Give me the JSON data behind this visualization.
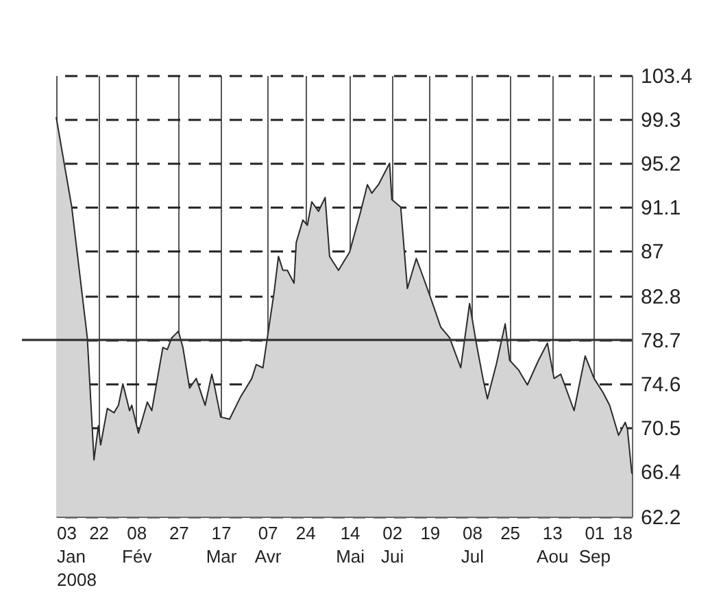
{
  "chart_data": {
    "type": "area",
    "x": [
      "2008-01-03",
      "2008-01-10",
      "2008-01-17",
      "2008-01-20",
      "2008-01-22",
      "2008-01-23",
      "2008-01-26",
      "2008-01-29",
      "2008-01-31",
      "2008-02-02",
      "2008-02-05",
      "2008-02-06",
      "2008-02-09",
      "2008-02-13",
      "2008-02-15",
      "2008-02-20",
      "2008-02-22",
      "2008-02-24",
      "2008-02-27",
      "2008-02-29",
      "2008-03-03",
      "2008-03-06",
      "2008-03-10",
      "2008-03-13",
      "2008-03-14",
      "2008-03-17",
      "2008-03-21",
      "2008-03-26",
      "2008-03-31",
      "2008-04-02",
      "2008-04-05",
      "2008-04-07",
      "2008-04-10",
      "2008-04-12",
      "2008-04-14",
      "2008-04-16",
      "2008-04-19",
      "2008-04-20",
      "2008-04-23",
      "2008-04-25",
      "2008-04-27",
      "2008-04-30",
      "2008-05-03",
      "2008-05-05",
      "2008-05-09",
      "2008-05-14",
      "2008-05-19",
      "2008-05-22",
      "2008-05-24",
      "2008-05-27",
      "2008-06-01",
      "2008-06-02",
      "2008-06-06",
      "2008-06-09",
      "2008-06-13",
      "2008-06-15",
      "2008-06-19",
      "2008-06-24",
      "2008-06-28",
      "2008-07-03",
      "2008-07-07",
      "2008-07-10",
      "2008-07-13",
      "2008-07-15",
      "2008-07-19",
      "2008-07-23",
      "2008-07-25",
      "2008-07-29",
      "2008-08-02",
      "2008-08-07",
      "2008-08-11",
      "2008-08-14",
      "2008-08-17",
      "2008-08-23",
      "2008-08-28",
      "2008-09-01",
      "2008-09-05",
      "2008-09-08",
      "2008-09-12",
      "2008-09-15",
      "2008-09-16",
      "2008-09-18"
    ],
    "series": [
      {
        "color": "#d4d4d4",
        "values": [
          99.5,
          91.1,
          78.9,
          67.5,
          70.7,
          68.9,
          72.3,
          71.9,
          72.6,
          74.6,
          72.1,
          72.6,
          70.0,
          72.9,
          72.1,
          78.0,
          77.8,
          78.9,
          79.5,
          78.0,
          74.2,
          75.1,
          72.6,
          75.5,
          74.6,
          71.5,
          71.3,
          73.4,
          75.1,
          76.4,
          76.1,
          78.9,
          83.1,
          86.5,
          85.2,
          85.2,
          84.0,
          87.8,
          89.9,
          89.4,
          91.6,
          90.7,
          92.0,
          86.5,
          85.2,
          86.9,
          90.7,
          93.2,
          92.4,
          93.2,
          95.2,
          91.8,
          91.1,
          83.5,
          86.3,
          85.2,
          82.9,
          79.9,
          78.9,
          76.1,
          82.1,
          78.4,
          75.1,
          73.2,
          76.4,
          80.2,
          76.8,
          75.9,
          74.5,
          76.8,
          78.4,
          75.1,
          75.5,
          72.1,
          77.2,
          75.1,
          73.8,
          72.6,
          69.8,
          71.0,
          70.4,
          66.2
        ]
      }
    ],
    "xlim": [
      "2008-01-03",
      "2008-09-18"
    ],
    "xticks": [
      {
        "value": "2008-01-03",
        "label": "03\nJan\n2008"
      },
      {
        "value": "2008-01-22",
        "label": "22"
      },
      {
        "value": "2008-02-08",
        "label": "08\nFév"
      },
      {
        "value": "2008-02-27",
        "label": "27"
      },
      {
        "value": "2008-03-17",
        "label": "17\nMar"
      },
      {
        "value": "2008-04-07",
        "label": "07\nAvr"
      },
      {
        "value": "2008-04-24",
        "label": "24"
      },
      {
        "value": "2008-05-14",
        "label": "14\nMai"
      },
      {
        "value": "2008-06-02",
        "label": "02\nJui"
      },
      {
        "value": "2008-06-19",
        "label": "19"
      },
      {
        "value": "2008-07-08",
        "label": "08\nJul"
      },
      {
        "value": "2008-07-25",
        "label": "25"
      },
      {
        "value": "2008-08-13",
        "label": "13\nAou"
      },
      {
        "value": "2008-09-01",
        "label": "01\nSep"
      },
      {
        "value": "2008-09-18",
        "label": "18"
      }
    ],
    "ylim": [
      62.2,
      103.4
    ],
    "yticks": [
      62.2,
      66.4,
      70.5,
      74.6,
      78.7,
      82.8,
      87,
      91.1,
      95.2,
      99.3,
      103.4
    ],
    "ref_lines": [
      {
        "axis": "y",
        "value": 78.7,
        "color": "#333333"
      }
    ],
    "grid": true
  }
}
